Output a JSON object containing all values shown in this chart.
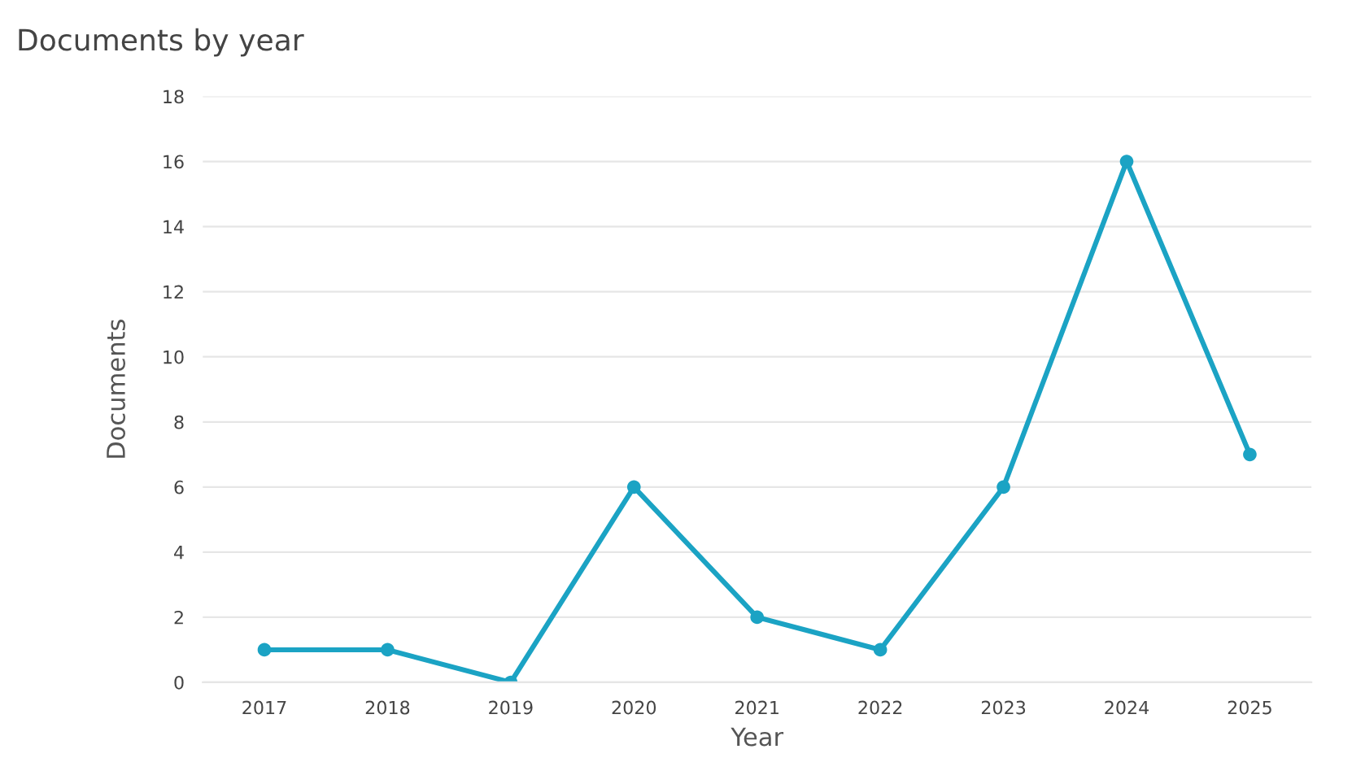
{
  "chart_data": {
    "type": "line",
    "title": "Documents by year",
    "xlabel": "Year",
    "ylabel": "Documents",
    "categories": [
      "2017",
      "2018",
      "2019",
      "2020",
      "2021",
      "2022",
      "2023",
      "2024",
      "2025"
    ],
    "series": [
      {
        "color": "#1ba3c4",
        "values": [
          1,
          1,
          0,
          6,
          2,
          1,
          6,
          16,
          7
        ]
      }
    ],
    "ylim": [
      0,
      18
    ],
    "yticks": [
      0,
      2,
      4,
      6,
      8,
      10,
      12,
      14,
      16,
      18
    ],
    "grid": "y",
    "marker": "circle",
    "line_style": "solid"
  }
}
